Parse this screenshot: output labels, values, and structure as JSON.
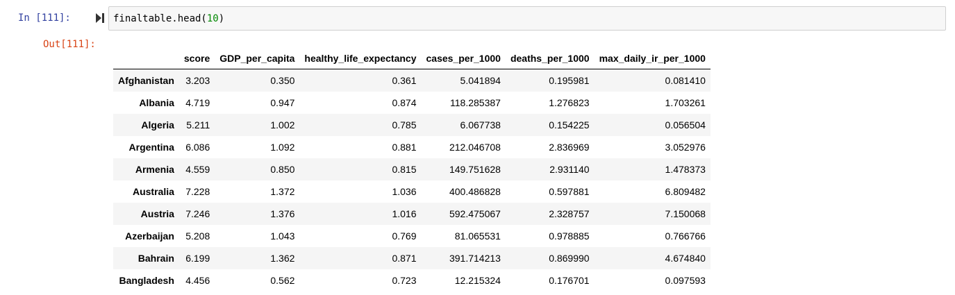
{
  "input": {
    "prompt": "In [111]:",
    "code_prefix": "finaltable.head(",
    "code_arg": "10",
    "code_suffix": ")"
  },
  "output": {
    "prompt": "Out[111]:"
  },
  "table": {
    "columns": [
      "",
      "score",
      "GDP_per_capita",
      "healthy_life_expectancy",
      "cases_per_1000",
      "deaths_per_1000",
      "max_daily_ir_per_1000"
    ],
    "rows": [
      {
        "index": "Afghanistan",
        "cells": [
          "3.203",
          "0.350",
          "0.361",
          "5.041894",
          "0.195981",
          "0.081410"
        ]
      },
      {
        "index": "Albania",
        "cells": [
          "4.719",
          "0.947",
          "0.874",
          "118.285387",
          "1.276823",
          "1.703261"
        ]
      },
      {
        "index": "Algeria",
        "cells": [
          "5.211",
          "1.002",
          "0.785",
          "6.067738",
          "0.154225",
          "0.056504"
        ]
      },
      {
        "index": "Argentina",
        "cells": [
          "6.086",
          "1.092",
          "0.881",
          "212.046708",
          "2.836969",
          "3.052976"
        ]
      },
      {
        "index": "Armenia",
        "cells": [
          "4.559",
          "0.850",
          "0.815",
          "149.751628",
          "2.931140",
          "1.478373"
        ]
      },
      {
        "index": "Australia",
        "cells": [
          "7.228",
          "1.372",
          "1.036",
          "400.486828",
          "0.597881",
          "6.809482"
        ]
      },
      {
        "index": "Austria",
        "cells": [
          "7.246",
          "1.376",
          "1.016",
          "592.475067",
          "2.328757",
          "7.150068"
        ]
      },
      {
        "index": "Azerbaijan",
        "cells": [
          "5.208",
          "1.043",
          "0.769",
          "81.065531",
          "0.978885",
          "0.766766"
        ]
      },
      {
        "index": "Bahrain",
        "cells": [
          "6.199",
          "1.362",
          "0.871",
          "391.714213",
          "0.869990",
          "4.674840"
        ]
      },
      {
        "index": "Bangladesh",
        "cells": [
          "4.456",
          "0.562",
          "0.723",
          "12.215324",
          "0.176701",
          "0.097593"
        ]
      }
    ]
  }
}
